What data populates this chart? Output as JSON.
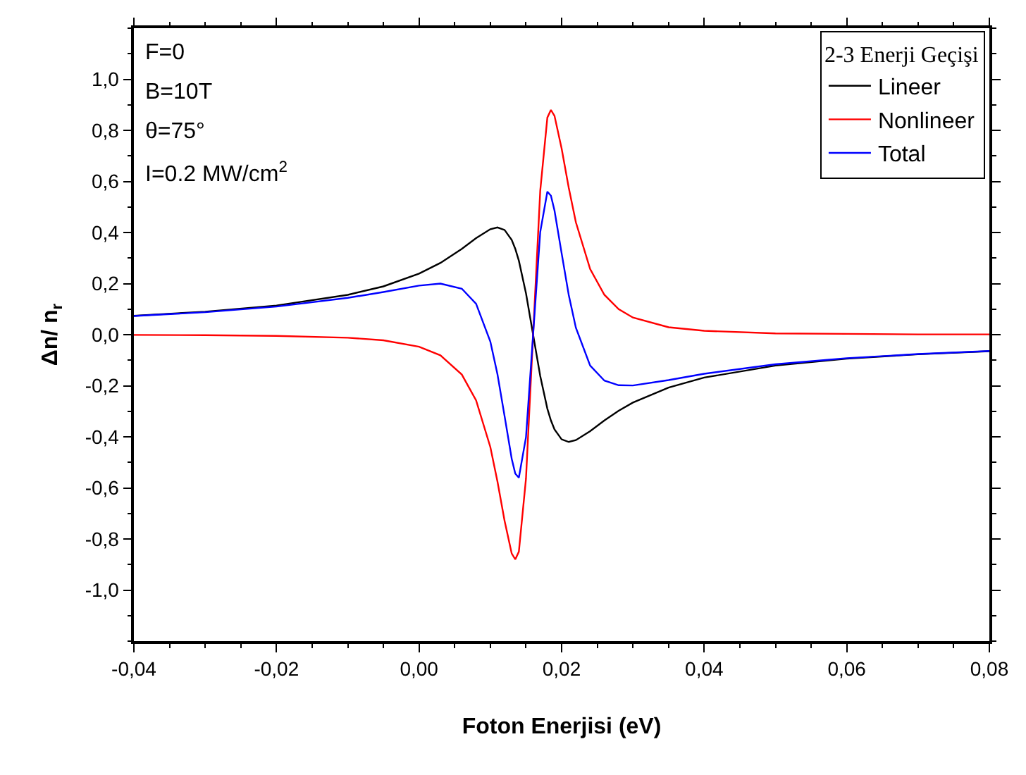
{
  "chart_data": {
    "type": "line",
    "xlabel": "Foton Enerjisi (eV)",
    "ylabel": "Δn/ n$_{r}$",
    "legend_title": "2-3 Enerji Geçişi",
    "x": [
      -0.04,
      -0.03,
      -0.02,
      -0.01,
      -0.005,
      0,
      0.003,
      0.006,
      0.008,
      0.01,
      0.011,
      0.012,
      0.013,
      0.0135,
      0.014,
      0.015,
      0.016,
      0.017,
      0.018,
      0.0185,
      0.019,
      0.02,
      0.021,
      0.022,
      0.024,
      0.026,
      0.028,
      0.03,
      0.035,
      0.04,
      0.05,
      0.06,
      0.07,
      0.08
    ],
    "series": [
      {
        "name": "Lineer",
        "color": "#000000",
        "values": [
          0.074,
          0.09,
          0.114,
          0.156,
          0.189,
          0.239,
          0.281,
          0.336,
          0.378,
          0.413,
          0.42,
          0.41,
          0.371,
          0.336,
          0.29,
          0.162,
          0,
          -0.162,
          -0.29,
          -0.336,
          -0.371,
          -0.41,
          -0.42,
          -0.413,
          -0.378,
          -0.336,
          -0.298,
          -0.266,
          -0.207,
          -0.168,
          -0.121,
          -0.094,
          -0.077,
          -0.065
        ]
      },
      {
        "name": "Nonlineer",
        "color": "#ff0000",
        "values": [
          -0.001,
          -0.002,
          -0.005,
          -0.012,
          -0.022,
          -0.047,
          -0.081,
          -0.156,
          -0.257,
          -0.44,
          -0.575,
          -0.729,
          -0.857,
          -0.88,
          -0.85,
          -0.564,
          0,
          0.564,
          0.85,
          0.88,
          0.857,
          0.729,
          0.575,
          0.44,
          0.257,
          0.156,
          0.1,
          0.067,
          0.029,
          0.015,
          0.005,
          0.003,
          0.001,
          0.001
        ]
      },
      {
        "name": "Total",
        "color": "#0000ff",
        "values": [
          0.073,
          0.088,
          0.11,
          0.144,
          0.167,
          0.192,
          0.2,
          0.18,
          0.121,
          -0.027,
          -0.155,
          -0.319,
          -0.486,
          -0.544,
          -0.56,
          -0.402,
          0,
          0.402,
          0.56,
          0.544,
          0.486,
          0.319,
          0.155,
          0.027,
          -0.121,
          -0.18,
          -0.198,
          -0.199,
          -0.178,
          -0.153,
          -0.116,
          -0.092,
          -0.076,
          -0.064
        ]
      }
    ],
    "xlim": [
      -0.04,
      0.08
    ],
    "xticks": [
      {
        "value": -0.04,
        "label": "-0,04"
      },
      {
        "value": -0.02,
        "label": "-0,02"
      },
      {
        "value": 0,
        "label": "0,00"
      },
      {
        "value": 0.02,
        "label": "0,02"
      },
      {
        "value": 0.04,
        "label": "0,04"
      },
      {
        "value": 0.06,
        "label": "0,06"
      },
      {
        "value": 0.08,
        "label": "0,08"
      }
    ],
    "ylim": [
      -1.2,
      1.2
    ],
    "yticks": [
      {
        "value": -1.0,
        "label": "-1,0"
      },
      {
        "value": -0.8,
        "label": "-0,8"
      },
      {
        "value": -0.6,
        "label": "-0,6"
      },
      {
        "value": -0.4,
        "label": "-0,4"
      },
      {
        "value": -0.2,
        "label": "-0,2"
      },
      {
        "value": 0,
        "label": "0,0"
      },
      {
        "value": 0.2,
        "label": "0,2"
      },
      {
        "value": 0.4,
        "label": "0,4"
      },
      {
        "value": 0.6,
        "label": "0,6"
      },
      {
        "value": 0.8,
        "label": "0,8"
      },
      {
        "value": 1.0,
        "label": "1,0"
      }
    ],
    "annotations": [
      "F=0",
      "B=10T",
      "θ=75°",
      "I=0.2 MW/cm$^{2}$"
    ],
    "legend": "top right",
    "marker": "none",
    "line_style": "solid"
  }
}
